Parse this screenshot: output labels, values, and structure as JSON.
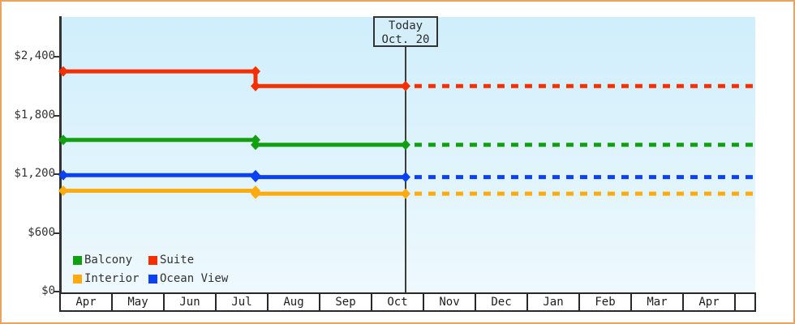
{
  "frame": {
    "border_color": "#e8a55e"
  },
  "chart_data": {
    "type": "line",
    "title": "",
    "unit": "USD price per cabin category",
    "x_axis": {
      "months": [
        "Apr",
        "May",
        "Jun",
        "Jul",
        "Aug",
        "Sep",
        "Oct",
        "Nov",
        "Dec",
        "Jan",
        "Feb",
        "Mar",
        "Apr",
        ""
      ],
      "end_month_position": 13.375
    },
    "y_axis": {
      "tick_values": [
        0,
        600,
        1200,
        1800,
        2400
      ],
      "tick_labels": [
        "$0",
        "$600",
        "$1,200",
        "$1,800",
        "$2,400"
      ],
      "range": [
        0,
        2820
      ]
    },
    "today": {
      "line1": "Today",
      "line2": "Oct. 20",
      "month_position": 6.64
    },
    "price_drop_month_position": 3.75,
    "series": [
      {
        "name": "Suite",
        "color": "#f53000",
        "initial_price": 2250,
        "current_price": 2100
      },
      {
        "name": "Balcony",
        "color": "#12a012",
        "initial_price": 1550,
        "current_price": 1500
      },
      {
        "name": "Ocean View",
        "color": "#0b41f0",
        "initial_price": 1190,
        "current_price": 1170
      },
      {
        "name": "Interior",
        "color": "#ffaa0d",
        "initial_price": 1030,
        "current_price": 1000
      }
    ],
    "forecast": "dotted line after today at current price",
    "legend": {
      "columns": 2,
      "items": [
        {
          "label": "Balcony",
          "color": "#12a012"
        },
        {
          "label": "Suite",
          "color": "#f53000"
        },
        {
          "label": "Interior",
          "color": "#ffaa0d"
        },
        {
          "label": "Ocean View",
          "color": "#0b41f0"
        }
      ]
    }
  }
}
